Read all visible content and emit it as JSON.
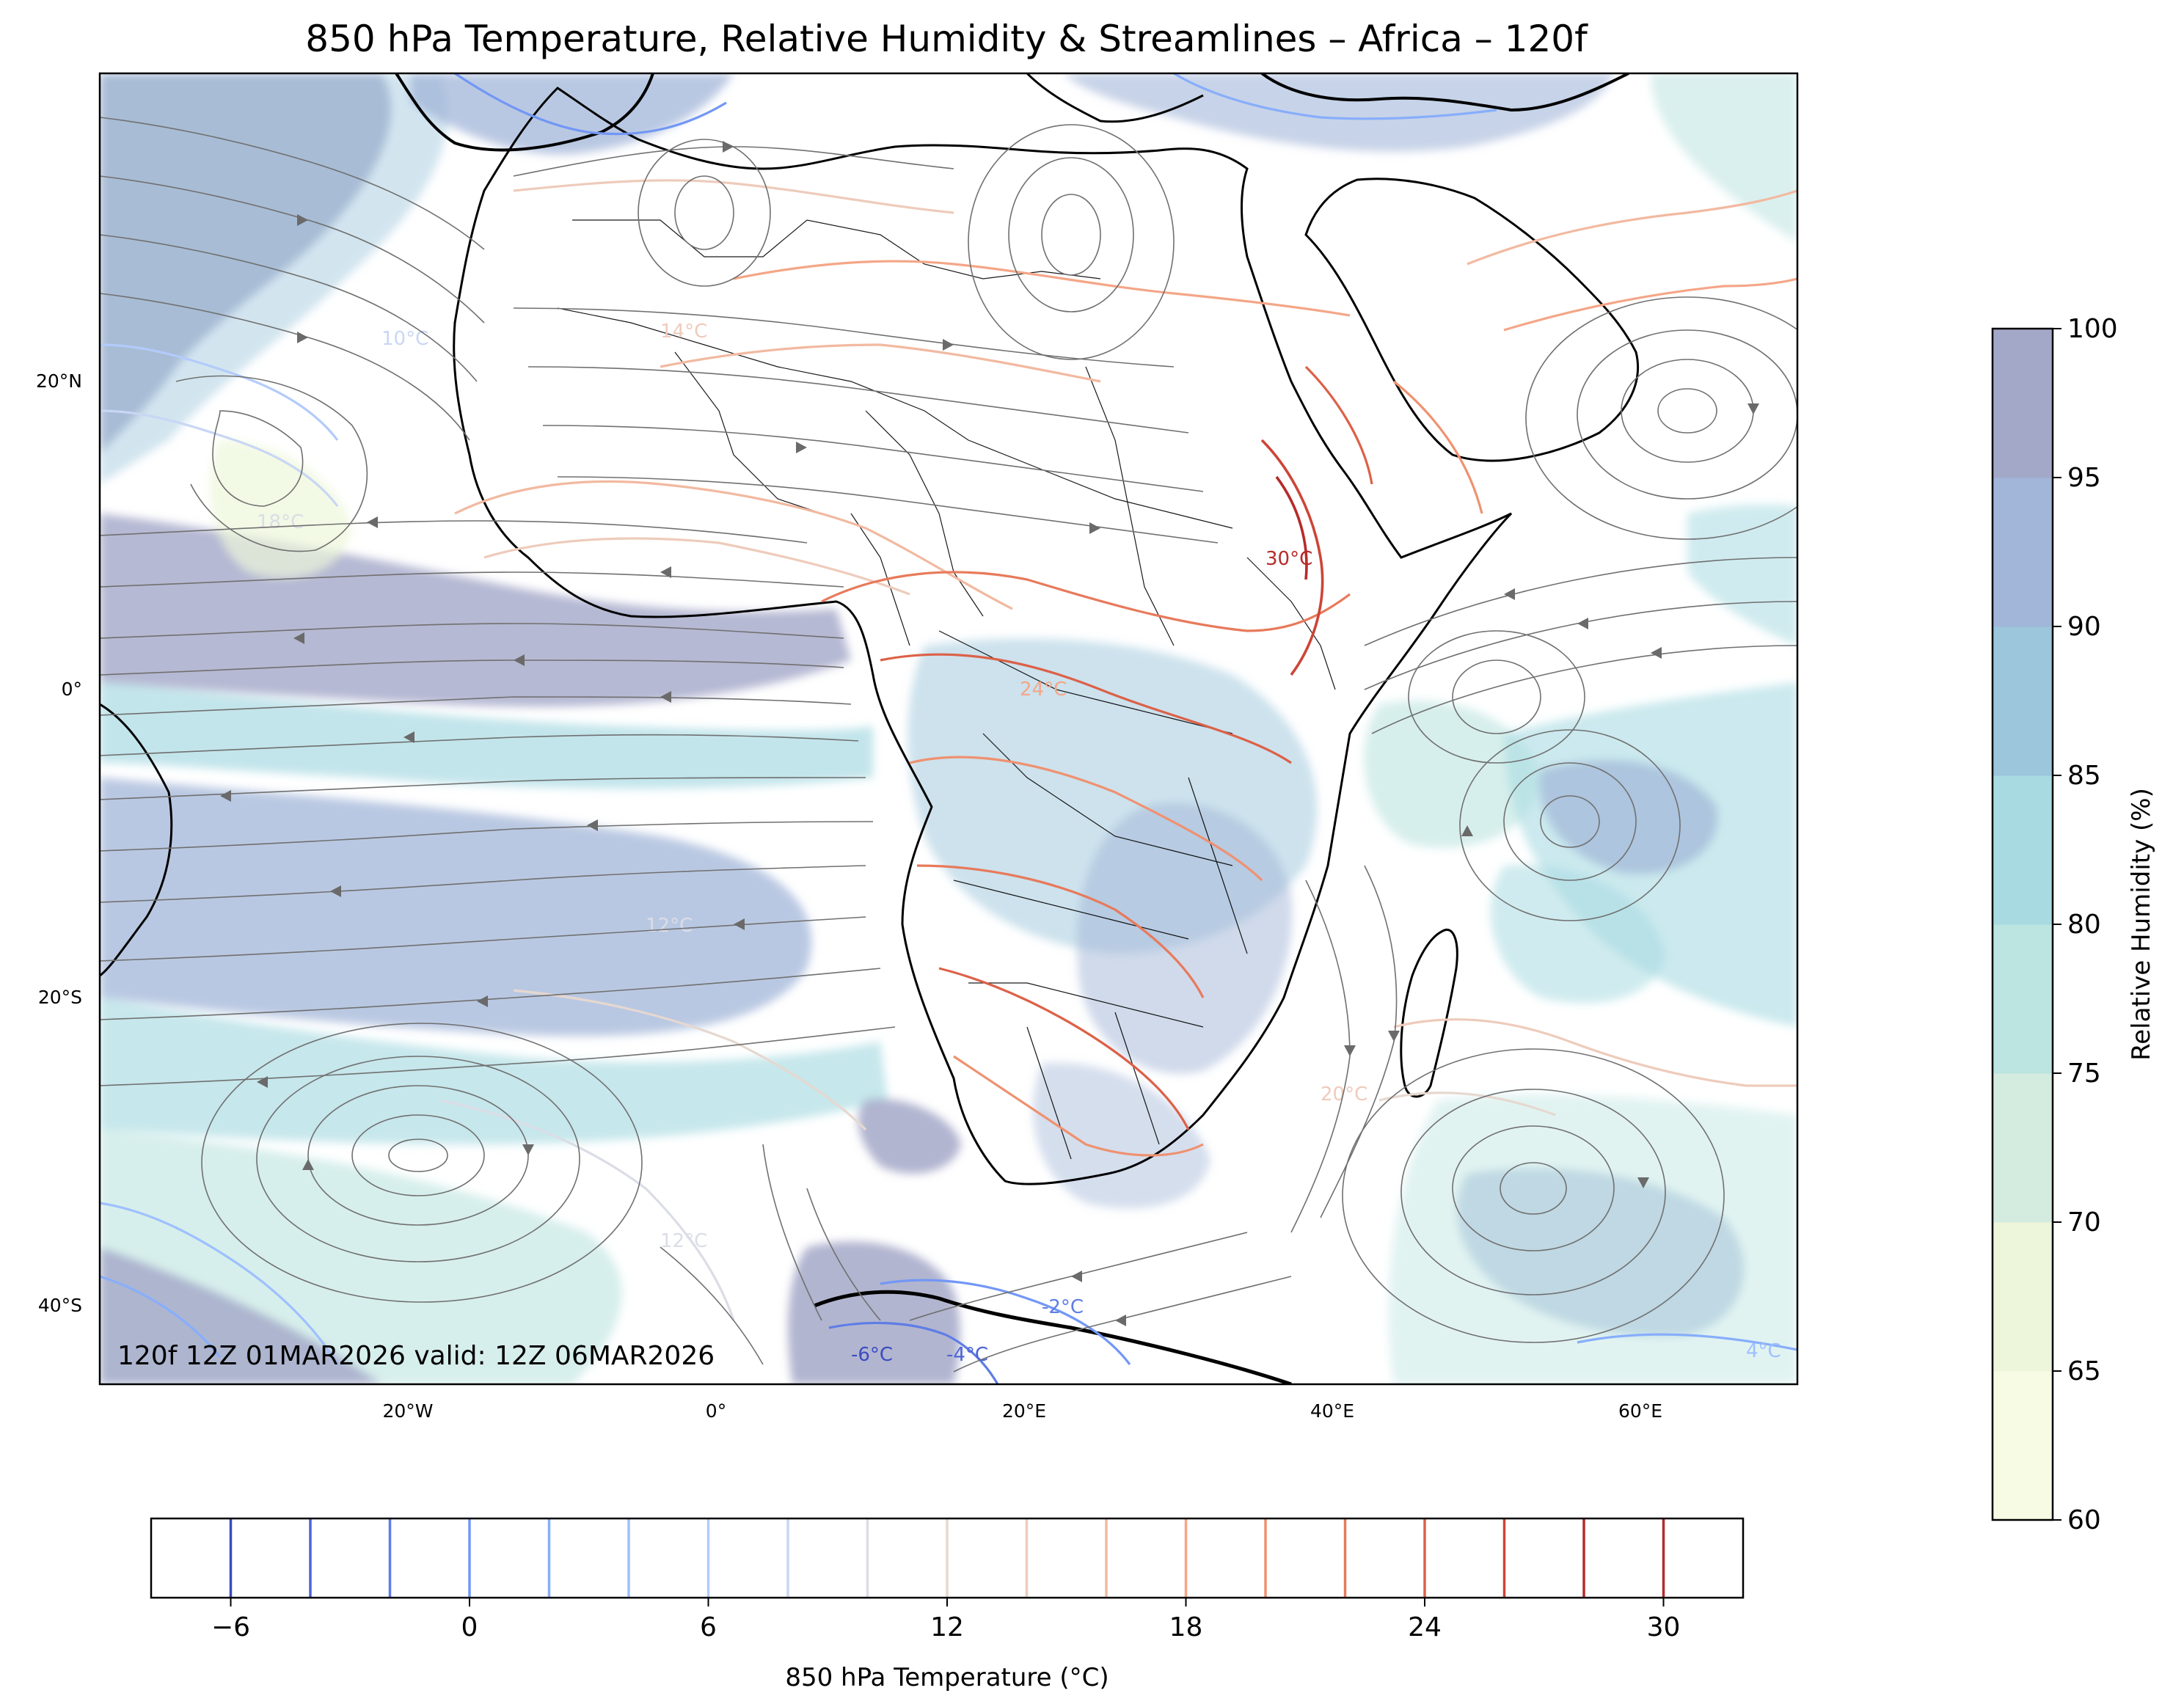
{
  "title": "850 hPa Temperature, Relative Humidity & Streamlines – Africa – 120f",
  "lat_ticks": [
    "20°N",
    "0°",
    "20°S",
    "40°S"
  ],
  "lon_ticks": [
    "20°W",
    "0°",
    "20°E",
    "40°E",
    "60°E"
  ],
  "annotation": "120f 12Z 01MAR2026 valid: 12Z 06MAR2026",
  "map_extent": {
    "lon_min": -40,
    "lon_max": 70,
    "lat_min": -45,
    "lat_max": 40
  },
  "rh_colorbar": {
    "label": "Relative Humidity (%)",
    "levels": [
      60,
      65,
      70,
      75,
      80,
      85,
      90,
      95,
      100
    ],
    "tick_labels": [
      "60",
      "65",
      "70",
      "75",
      "80",
      "85",
      "90",
      "95",
      "100"
    ],
    "colors": [
      "#f7fbe4",
      "#edf6da",
      "#d4ece0",
      "#bce4e0",
      "#a8dae2",
      "#9cc6dc",
      "#a1b6d8",
      "#a4a8c8"
    ]
  },
  "temp_colorbar": {
    "label": "850 hPa Temperature (°C)",
    "levels": [
      -6,
      -4,
      -2,
      0,
      2,
      4,
      6,
      8,
      10,
      12,
      14,
      16,
      18,
      20,
      22,
      24,
      26,
      28,
      30
    ],
    "tick_values": [
      -6,
      0,
      6,
      12,
      18,
      24,
      30
    ],
    "tick_labels": [
      "−6",
      "0",
      "6",
      "12",
      "18",
      "24",
      "30"
    ],
    "colors": [
      "#3a4cc0",
      "#4b64d5",
      "#5e7de6",
      "#7297f5",
      "#88aefb",
      "#9ec0ff",
      "#b3cbfb",
      "#c9d6f4",
      "#dbdde6",
      "#e6d8d0",
      "#eecbbb",
      "#f2b9a0",
      "#f4a687",
      "#ef9170",
      "#e77a5b",
      "#dc6148",
      "#cc4536",
      "#b52b29"
    ],
    "vmin": -8,
    "vmax": 32
  },
  "contour_labels": [
    "10°C",
    "14°C",
    "18°C",
    "24°C",
    "12°C",
    "12°C",
    "20°C",
    "-6°C",
    "-4°C",
    "4°C",
    "-2°C",
    "30°C"
  ],
  "colors": {
    "streamline": "#707070",
    "coast": "#000000",
    "border": "#000000"
  }
}
